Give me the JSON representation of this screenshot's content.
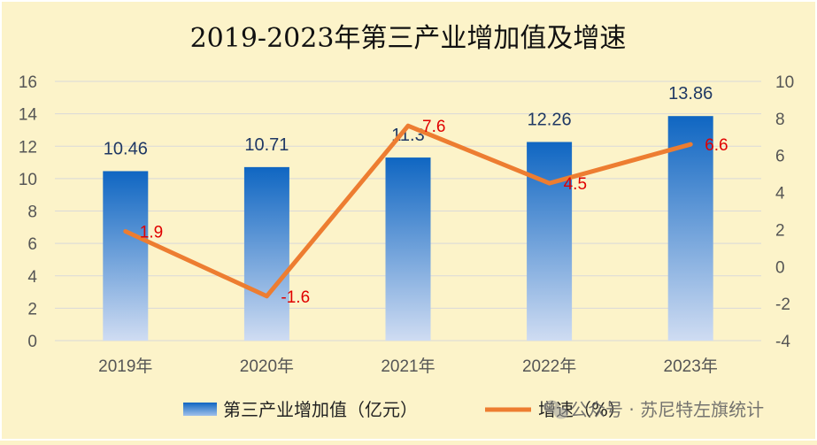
{
  "chart_data": {
    "type": "bar+line",
    "title": "2019-2023年第三产业增加值及增速",
    "categories": [
      "2019年",
      "2020年",
      "2021年",
      "2022年",
      "2023年"
    ],
    "series": [
      {
        "name": "第三产业增加值（亿元）",
        "type": "bar",
        "axis": "left",
        "values": [
          10.46,
          10.71,
          11.3,
          12.26,
          13.86
        ],
        "labels": [
          "10.46",
          "10.71",
          "11.3",
          "12.26",
          "13.86"
        ],
        "color_top": "#0f66c2",
        "color_bottom": "#cfdcf2"
      },
      {
        "name": "增速（%）",
        "type": "line",
        "axis": "right",
        "values": [
          1.9,
          -1.6,
          7.6,
          4.5,
          6.6
        ],
        "labels": [
          "1.9",
          "-1.6",
          "7.6",
          "4.5",
          "6.6"
        ],
        "color": "#ed7d31",
        "label_color": "#e00000"
      }
    ],
    "y_left": {
      "min": 0,
      "max": 16,
      "step": 2,
      "ticks": [
        "0",
        "2",
        "4",
        "6",
        "8",
        "10",
        "12",
        "14",
        "16"
      ]
    },
    "y_right": {
      "min": -4,
      "max": 10,
      "step": 2,
      "ticks": [
        "-4",
        "-2",
        "0",
        "2",
        "4",
        "6",
        "8",
        "10"
      ]
    },
    "grid": true,
    "legend_position": "bottom"
  },
  "legend": {
    "bar_label": "第三产业增加值（亿元）",
    "line_label": "增速（%）"
  },
  "watermark": "公众号 · 苏尼特左旗统计",
  "colors": {
    "background": "#fcf3c9",
    "grid": "#d9d9d9",
    "border": "#ffffff"
  }
}
